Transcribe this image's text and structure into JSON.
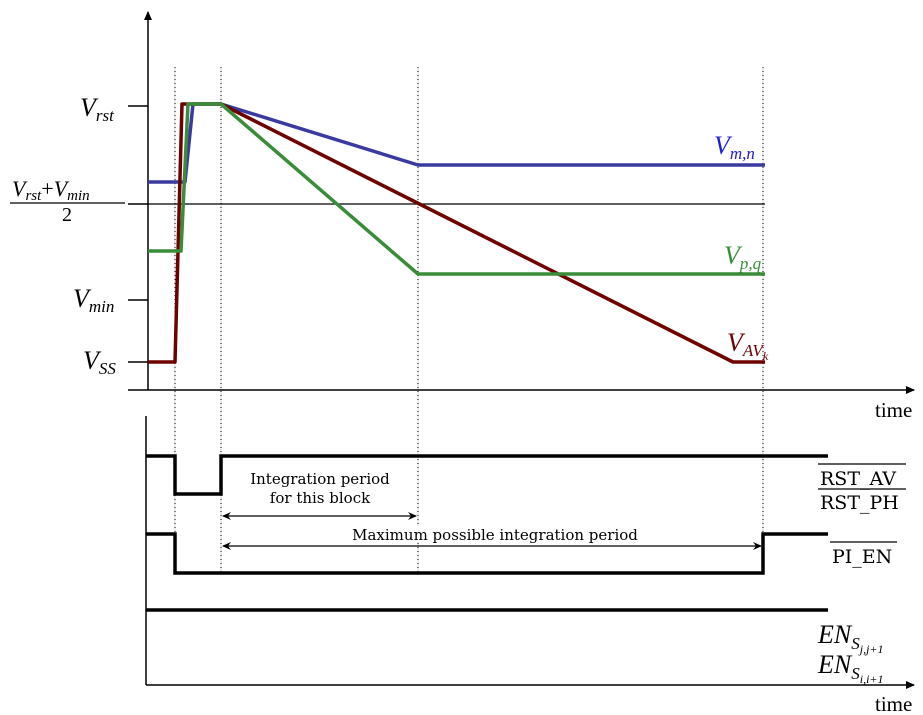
{
  "voltage_plot": {
    "x_axis_label": "time",
    "y_labels": {
      "v_rst": {
        "main": "V",
        "sub": "rst"
      },
      "v_mid_num_a": {
        "main": "V",
        "sub": "rst"
      },
      "plus": "+",
      "v_mid_num_b": {
        "main": "V",
        "sub": "min"
      },
      "v_mid_den": "2",
      "v_min": {
        "main": "V",
        "sub": "min"
      },
      "v_ss": {
        "main": "V",
        "sub": "SS"
      }
    },
    "traces": [
      {
        "key": "blue",
        "color": "#3a3aa0",
        "main": "V",
        "sub": "m,n"
      },
      {
        "key": "green",
        "color": "#3a8c3a",
        "main": "V",
        "sub": "p,q"
      },
      {
        "key": "red",
        "color": "#6e0000",
        "main": "V",
        "sub": "AV",
        "subsub": "k"
      }
    ]
  },
  "timing_plot": {
    "x_axis_label": "time",
    "signals": {
      "rst_av": "RST_AV",
      "rst_ph": "RST_PH",
      "pi_en": "PI_EN",
      "en_j": {
        "main": "EN",
        "sub": "S",
        "subsub": "j,j+1"
      },
      "en_i": {
        "main": "EN",
        "sub": "S",
        "subsub": "i,i+1"
      }
    },
    "annotations": {
      "integration_line1": "Integration period",
      "integration_line2": "for this block",
      "maximum": "Maximum possible integration period"
    }
  },
  "colors": {
    "axis": "#000000",
    "blue_trace": "#3a3aa0",
    "green_trace": "#3a8c3a",
    "red_trace": "#6e0000"
  }
}
